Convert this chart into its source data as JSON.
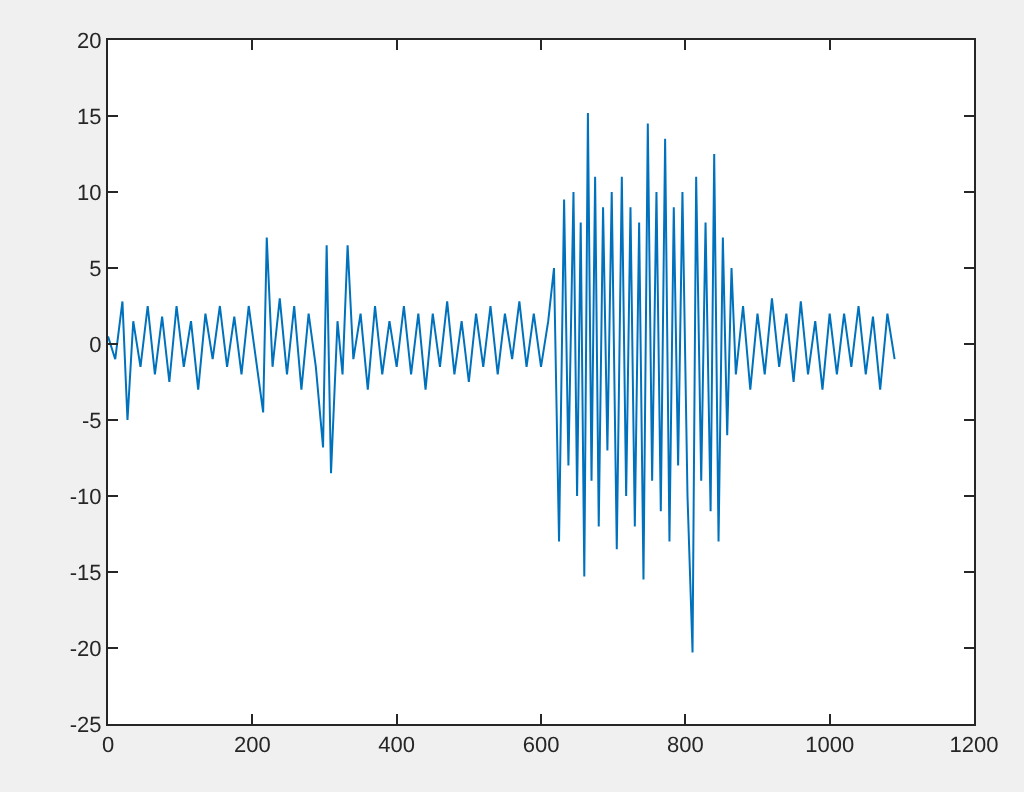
{
  "chart_data": {
    "type": "line",
    "x": [
      0,
      10,
      20,
      27,
      35,
      45,
      55,
      65,
      75,
      85,
      95,
      105,
      115,
      125,
      135,
      145,
      155,
      165,
      175,
      185,
      195,
      205,
      215,
      220,
      228,
      238,
      248,
      258,
      268,
      278,
      288,
      298,
      303,
      309,
      318,
      325,
      332,
      340,
      350,
      360,
      370,
      380,
      390,
      400,
      410,
      420,
      430,
      440,
      450,
      460,
      470,
      480,
      490,
      500,
      510,
      520,
      530,
      540,
      550,
      560,
      570,
      580,
      590,
      600,
      610,
      618,
      625,
      632,
      638,
      645,
      650,
      655,
      660,
      665,
      670,
      675,
      680,
      686,
      692,
      698,
      705,
      712,
      718,
      724,
      730,
      736,
      742,
      748,
      754,
      760,
      766,
      772,
      778,
      784,
      790,
      796,
      803,
      810,
      815,
      822,
      828,
      835,
      840,
      846,
      852,
      858,
      864,
      870,
      880,
      890,
      900,
      910,
      920,
      930,
      940,
      950,
      960,
      970,
      980,
      990,
      1000,
      1010,
      1020,
      1030,
      1040,
      1050,
      1060,
      1070,
      1080,
      1090
    ],
    "series": [
      {
        "color": "#0072bd",
        "values": [
          0.5,
          -1,
          2.8,
          -5,
          1.5,
          -1.5,
          2.5,
          -2,
          1.8,
          -2.5,
          2.5,
          -1.5,
          1.5,
          -3,
          2,
          -1,
          2.5,
          -1.5,
          1.8,
          -2,
          2.5,
          -1,
          -4.5,
          7,
          -1.5,
          3,
          -2,
          2.5,
          -3,
          2,
          -1.5,
          -6.8,
          6.5,
          -8.5,
          1.5,
          -2,
          6.5,
          -1,
          2,
          -3,
          2.5,
          -2,
          1.5,
          -1.5,
          2.5,
          -2,
          2,
          -3,
          2,
          -1.5,
          2.8,
          -2,
          1.5,
          -2.5,
          2,
          -1.5,
          2.5,
          -2,
          2,
          -1,
          2.8,
          -1.5,
          2,
          -1.5,
          1.5,
          5,
          -13,
          9.5,
          -8,
          10,
          -10,
          8,
          -15.3,
          15.2,
          -9,
          11,
          -12,
          9,
          -7,
          10,
          -13.5,
          11,
          -10,
          9,
          -12,
          8,
          -15.5,
          14.5,
          -9,
          10,
          -11,
          13.5,
          -13,
          9,
          -8,
          10,
          -10,
          -20.3,
          11,
          -9,
          8,
          -11,
          12.5,
          -13,
          7,
          -6,
          5,
          -2,
          2.5,
          -3,
          2,
          -2,
          3,
          -1.5,
          2,
          -2.5,
          2.8,
          -2,
          1.5,
          -3,
          2,
          -2,
          2,
          -1.5,
          2.5,
          -2,
          1.8,
          -3,
          2,
          -1
        ]
      }
    ],
    "xlim": [
      0,
      1200
    ],
    "xticks": [
      0,
      200,
      400,
      600,
      800,
      1000,
      1200
    ],
    "ylim": [
      -25,
      20
    ],
    "yticks": [
      -25,
      -20,
      -15,
      -10,
      -5,
      0,
      5,
      10,
      15,
      20
    ],
    "grid": false
  }
}
